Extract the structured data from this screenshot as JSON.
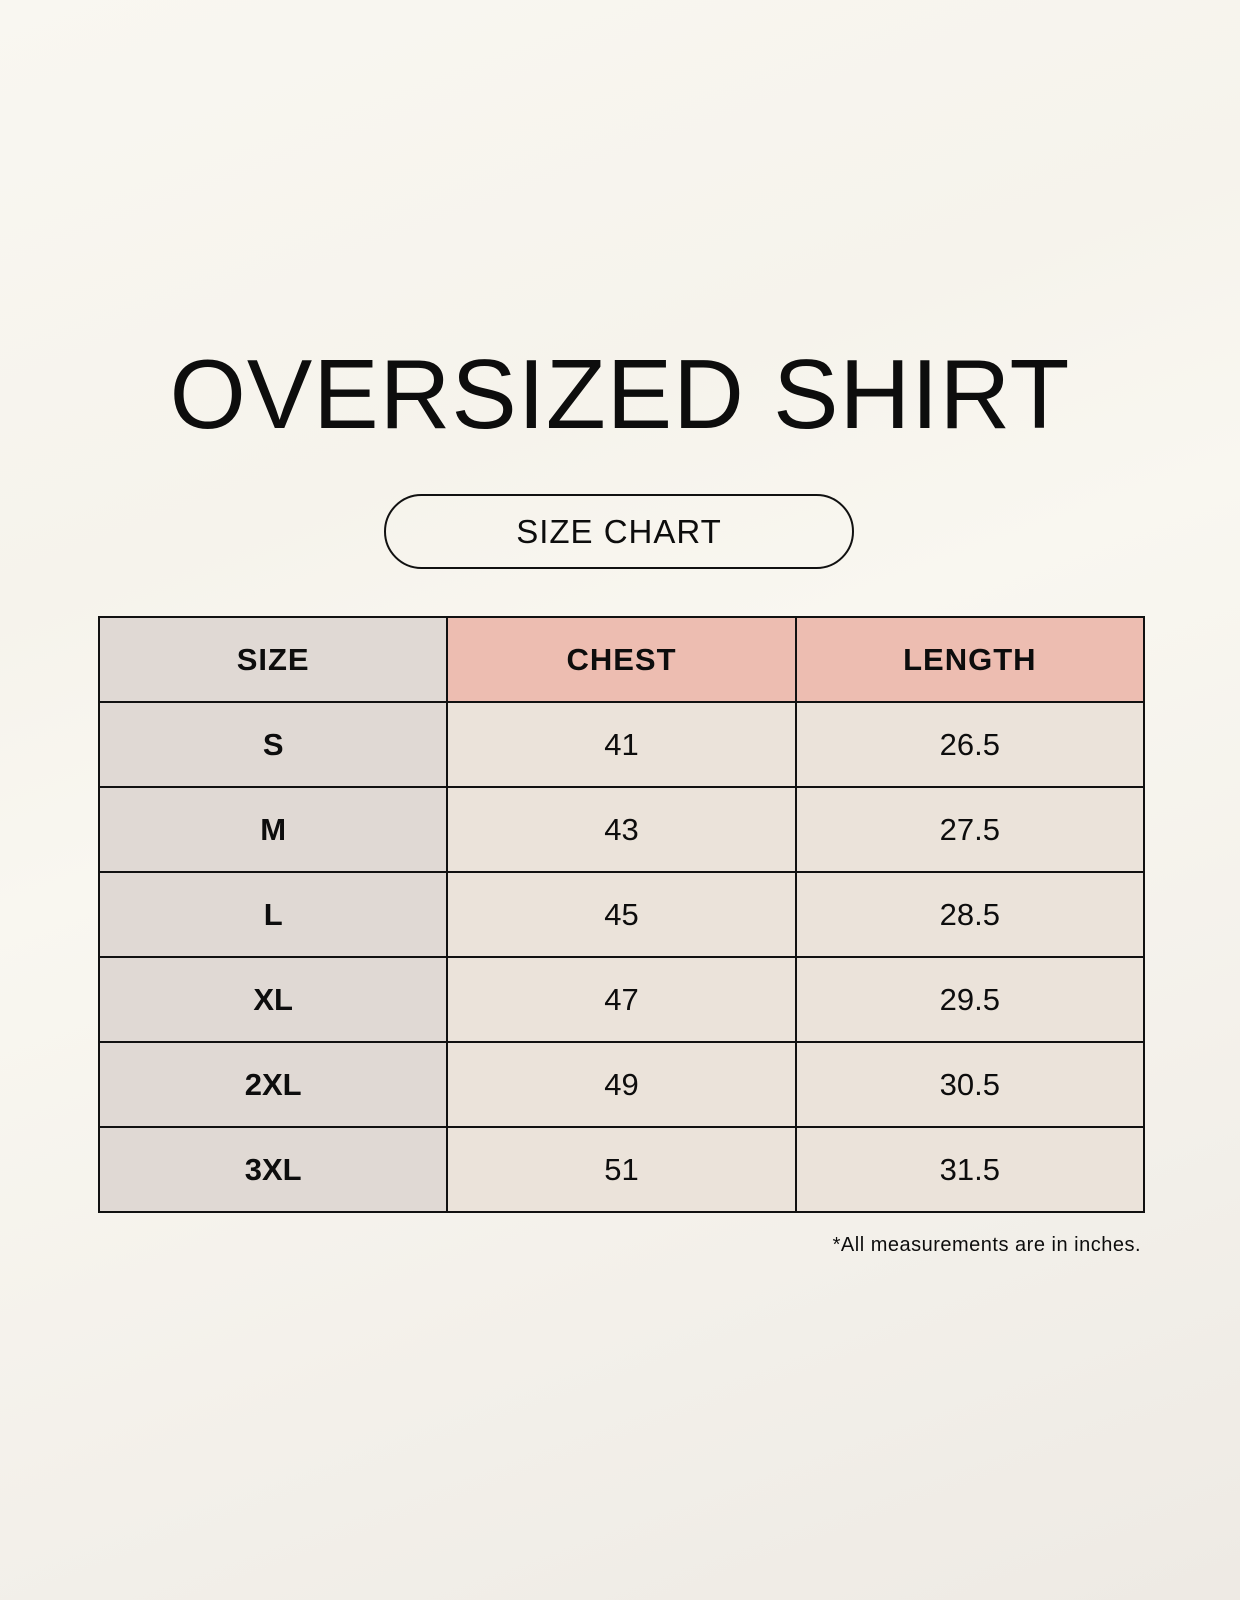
{
  "title": "OVERSIZED SHIRT",
  "subtitle": "SIZE CHART",
  "table": {
    "headers": [
      "SIZE",
      "CHEST",
      "LENGTH"
    ],
    "rows": [
      [
        "S",
        "41",
        "26.5"
      ],
      [
        "M",
        "43",
        "27.5"
      ],
      [
        "L",
        "45",
        "28.5"
      ],
      [
        "XL",
        "47",
        "29.5"
      ],
      [
        "2XL",
        "49",
        "30.5"
      ],
      [
        "3XL",
        "51",
        "31.5"
      ]
    ]
  },
  "note": "*All measurements are in inches.",
  "colors": {
    "header_accent": "#edbdb1",
    "size_column": "#e0d9d4",
    "cells": "#ebe3da"
  }
}
